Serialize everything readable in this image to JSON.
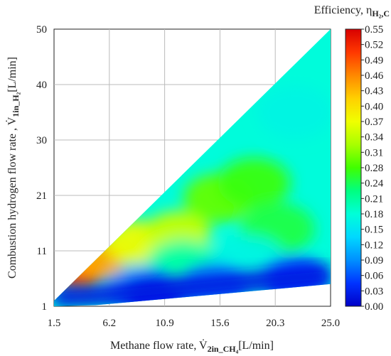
{
  "chart_data": {
    "type": "heatmap",
    "colorbar_title": "Efficiency, η",
    "colorbar_title_sub": "H₂,C",
    "xlabel": "Methane flow rate, V̇",
    "xlabel_sub": "2in_CH₄",
    "xlabel_unit": "[L/min]",
    "ylabel": "Combustion hydrogen flow rate , V̇",
    "ylabel_sub": "1in_H₂",
    "ylabel_unit": "[L/min]",
    "x_ticks": [
      "1.5",
      "6.2",
      "10.9",
      "15.6",
      "20.3",
      "25.0"
    ],
    "x_tick_values": [
      1.5,
      6.2,
      10.9,
      15.6,
      20.3,
      25.0
    ],
    "y_ticks": [
      "1",
      "11",
      "21",
      "30",
      "40",
      "50"
    ],
    "y_tick_values": [
      1,
      11,
      21,
      30,
      40,
      50
    ],
    "xlim": [
      1.5,
      25.0
    ],
    "ylim": [
      1,
      50
    ],
    "grid": true,
    "colorbar_ticks": [
      "0.55",
      "0.52",
      "0.49",
      "0.46",
      "0.43",
      "0.40",
      "0.37",
      "0.34",
      "0.31",
      "0.28",
      "0.24",
      "0.21",
      "0.18",
      "0.15",
      "0.12",
      "0.09",
      "0.06",
      "0.03",
      "0.00"
    ],
    "colorbar_range": [
      0.0,
      0.55
    ],
    "colormap": [
      "#0000c8",
      "#0033ff",
      "#0090ff",
      "#00d8ff",
      "#00ffd8",
      "#00ff80",
      "#40ff00",
      "#a8ff00",
      "#f0ff00",
      "#ffd000",
      "#ff8800",
      "#ff3800",
      "#d80000"
    ],
    "domain_boundary": {
      "upper": [
        [
          1.5,
          2.0
        ],
        [
          25.0,
          50.0
        ]
      ],
      "lower": [
        [
          1.5,
          1.0
        ],
        [
          5.0,
          1.2
        ],
        [
          25.0,
          5.0
        ]
      ]
    },
    "hotspots": [
      {
        "x": 3.6,
        "y": 7.0,
        "z": 0.5
      },
      {
        "x": 5.2,
        "y": 9.5,
        "z": 0.44
      },
      {
        "x": 8.5,
        "y": 12.5,
        "z": 0.37
      },
      {
        "x": 12.0,
        "y": 14.0,
        "z": 0.34
      },
      {
        "x": 15.5,
        "y": 20.5,
        "z": 0.29
      },
      {
        "x": 18.5,
        "y": 23.0,
        "z": 0.27
      },
      {
        "x": 20.5,
        "y": 15.0,
        "z": 0.25
      },
      {
        "x": 12.5,
        "y": 8.0,
        "z": 0.21
      },
      {
        "x": 18.0,
        "y": 9.0,
        "z": 0.17
      },
      {
        "x": 22.0,
        "y": 35.0,
        "z": 0.17
      },
      {
        "x": 9.0,
        "y": 4.0,
        "z": 0.1
      },
      {
        "x": 15.0,
        "y": 4.5,
        "z": 0.08
      },
      {
        "x": 22.0,
        "y": 6.0,
        "z": 0.05
      },
      {
        "x": 10.0,
        "y": 2.5,
        "z": 0.03
      }
    ]
  }
}
